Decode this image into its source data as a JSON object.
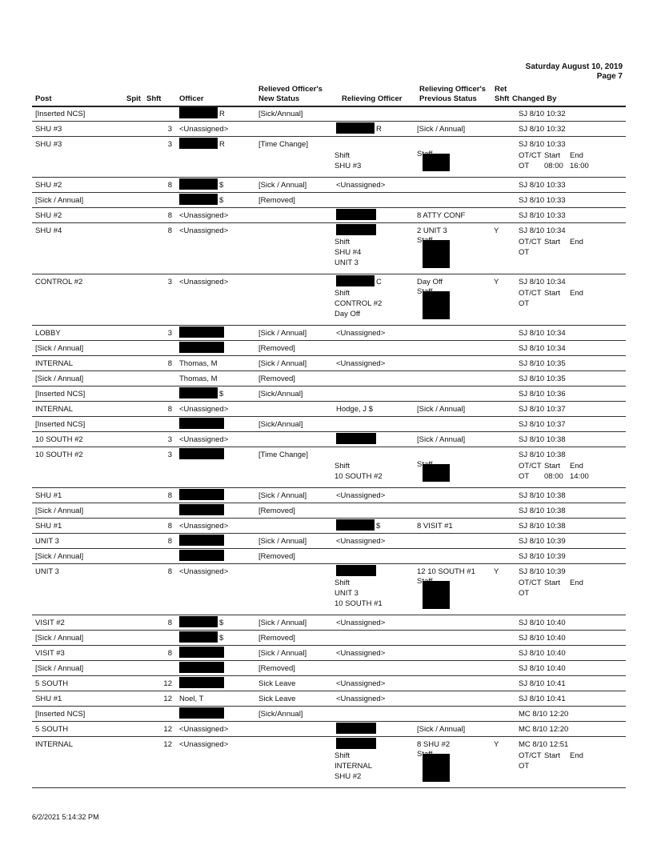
{
  "header": {
    "date": "Saturday August 10, 2019",
    "page": "Page 7"
  },
  "columns": {
    "post": "Post",
    "spit": "Spit",
    "shft": "Shft",
    "officer": "Officer",
    "new_status_1": "Relieved Officer's",
    "new_status_2": "New Status",
    "relieving": "Relieving Officer",
    "prev_status_1": "Relieving Officer's",
    "prev_status_2": "Previous  Status",
    "ret_1": "Ret",
    "ret_2": "Shft",
    "changed_by": "Changed By"
  },
  "rows": [
    {
      "post": "[Inserted NCS]",
      "shft": "",
      "officer": {
        "redacted": true,
        "suffix": "R"
      },
      "new": "[Sick/Annual]",
      "rel": "",
      "prev": "",
      "ret": "",
      "chg": "SJ 8/10 10:32"
    },
    {
      "post": "SHU #3",
      "shft": "3",
      "officer": {
        "text": "<Unassigned>"
      },
      "new": "",
      "rel": {
        "redacted": true,
        "suffix": "R"
      },
      "prev": "[Sick / Annual]",
      "ret": "",
      "chg": "SJ 8/10 10:32"
    },
    {
      "post": "SHU #3",
      "shft": "3",
      "officer": {
        "redacted": true,
        "suffix": "R"
      },
      "new": "[Time Change]",
      "rel": "",
      "prev": "",
      "ret": "",
      "chg": "SJ 8/10 10:33",
      "detail": {
        "shift_label": "Shift",
        "shift_lines": [
          "SHU #3"
        ],
        "staff_label": "Staff",
        "otct_label": "OT/CT",
        "start_label": "Start",
        "end_label": "End",
        "ot": "OT",
        "start": "08:00",
        "end": "16:00"
      }
    },
    {
      "post": "SHU #2",
      "shft": "8",
      "officer": {
        "redacted": true,
        "suffix": "$"
      },
      "new": "[Sick / Annual]",
      "rel": {
        "text": "<Unassigned>"
      },
      "prev": "",
      "ret": "",
      "chg": "SJ 8/10 10:33"
    },
    {
      "post": "[Sick / Annual]",
      "shft": "",
      "officer": {
        "redacted": true,
        "suffix": "$"
      },
      "new": "[Removed]",
      "rel": "",
      "prev": "",
      "ret": "",
      "chg": "SJ 8/10 10:33"
    },
    {
      "post": "SHU #2",
      "shft": "8",
      "officer": {
        "text": "<Unassigned>"
      },
      "new": "",
      "rel": {
        "redacted": true,
        "suffix": ""
      },
      "prev": "8 ATTY CONF",
      "ret": "",
      "chg": "SJ 8/10 10:33"
    },
    {
      "post": "SHU #4",
      "shft": "8",
      "officer": {
        "text": "<Unassigned>"
      },
      "new": "",
      "rel": {
        "redacted": true,
        "suffix": ""
      },
      "prev": "2 UNIT 3",
      "ret": "Y",
      "chg": "SJ 8/10 10:34",
      "detail": {
        "shift_label": "Shift",
        "shift_lines": [
          "SHU #4",
          "UNIT 3"
        ],
        "staff_label": "Staff",
        "otct_label": "OT/CT",
        "start_label": "Start",
        "end_label": "End",
        "ot": "OT",
        "start": "",
        "end": ""
      }
    },
    {
      "post": "CONTROL #2",
      "shft": "3",
      "officer": {
        "text": "<Unassigned>"
      },
      "new": "",
      "rel": {
        "redacted": true,
        "suffix": "C"
      },
      "prev": "Day Off",
      "ret": "Y",
      "chg": "SJ 8/10 10:34",
      "detail": {
        "shift_label": "Shift",
        "shift_lines": [
          "CONTROL #2",
          "Day Off"
        ],
        "staff_label": "Staff",
        "otct_label": "OT/CT",
        "start_label": "Start",
        "end_label": "End",
        "ot": "OT",
        "start": "",
        "end": ""
      }
    },
    {
      "post": "LOBBY",
      "shft": "3",
      "officer": {
        "redacted": true,
        "suffix": ""
      },
      "new": "[Sick / Annual]",
      "rel": {
        "text": "<Unassigned>"
      },
      "prev": "",
      "ret": "",
      "chg": "SJ 8/10 10:34"
    },
    {
      "post": "[Sick / Annual]",
      "shft": "",
      "officer": {
        "redacted": true,
        "suffix": ""
      },
      "new": "[Removed]",
      "rel": "",
      "prev": "",
      "ret": "",
      "chg": "SJ 8/10 10:34"
    },
    {
      "post": "INTERNAL",
      "shft": "8",
      "officer": {
        "text": "Thomas, M"
      },
      "new": "[Sick / Annual]",
      "rel": {
        "text": "<Unassigned>"
      },
      "prev": "",
      "ret": "",
      "chg": "SJ 8/10 10:35"
    },
    {
      "post": "[Sick / Annual]",
      "shft": "",
      "officer": {
        "text": "Thomas, M"
      },
      "new": "[Removed]",
      "rel": "",
      "prev": "",
      "ret": "",
      "chg": "SJ 8/10 10:35"
    },
    {
      "post": "[Inserted NCS]",
      "shft": "",
      "officer": {
        "redacted": true,
        "suffix": "$"
      },
      "new": "[Sick/Annual]",
      "rel": "",
      "prev": "",
      "ret": "",
      "chg": "SJ 8/10 10:36"
    },
    {
      "post": "INTERNAL",
      "shft": "8",
      "officer": {
        "text": "<Unassigned>"
      },
      "new": "",
      "rel": {
        "text": "Hodge, J $"
      },
      "prev": "[Sick / Annual]",
      "ret": "",
      "chg": "SJ 8/10 10:37"
    },
    {
      "post": "[Inserted NCS]",
      "shft": "",
      "officer": {
        "redacted": true,
        "suffix": ""
      },
      "new": "[Sick/Annual]",
      "rel": "",
      "prev": "",
      "ret": "",
      "chg": "SJ 8/10 10:37"
    },
    {
      "post": "10 SOUTH #2",
      "shft": "3",
      "officer": {
        "text": "<Unassigned>"
      },
      "new": "",
      "rel": {
        "redacted": true,
        "suffix": ""
      },
      "prev": "[Sick / Annual]",
      "ret": "",
      "chg": "SJ 8/10 10:38"
    },
    {
      "post": "10 SOUTH #2",
      "shft": "3",
      "officer": {
        "redacted": true,
        "suffix": ""
      },
      "new": "[Time Change]",
      "rel": "",
      "prev": "",
      "ret": "",
      "chg": "SJ 8/10 10:38",
      "detail": {
        "shift_label": "Shift",
        "shift_lines": [
          "10 SOUTH #2"
        ],
        "staff_label": "Staff",
        "otct_label": "OT/CT",
        "start_label": "Start",
        "end_label": "End",
        "ot": "OT",
        "start": "08:00",
        "end": "14:00"
      }
    },
    {
      "post": "SHU #1",
      "shft": "8",
      "officer": {
        "redacted": true,
        "suffix": ""
      },
      "new": "[Sick / Annual]",
      "rel": {
        "text": "<Unassigned>"
      },
      "prev": "",
      "ret": "",
      "chg": "SJ 8/10 10:38"
    },
    {
      "post": "[Sick / Annual]",
      "shft": "",
      "officer": {
        "redacted": true,
        "suffix": ""
      },
      "new": "[Removed]",
      "rel": "",
      "prev": "",
      "ret": "",
      "chg": "SJ 8/10 10:38"
    },
    {
      "post": "SHU #1",
      "shft": "8",
      "officer": {
        "text": "<Unassigned>"
      },
      "new": "",
      "rel": {
        "redacted": true,
        "suffix": "$"
      },
      "prev": "8 VISIT #1",
      "ret": "",
      "chg": "SJ 8/10 10:38"
    },
    {
      "post": "UNIT 3",
      "shft": "8",
      "officer": {
        "redacted": true,
        "suffix": ""
      },
      "new": "[Sick / Annual]",
      "rel": {
        "text": "<Unassigned>"
      },
      "prev": "",
      "ret": "",
      "chg": "SJ 8/10 10:39"
    },
    {
      "post": "[Sick / Annual]",
      "shft": "",
      "officer": {
        "redacted": true,
        "suffix": ""
      },
      "new": "[Removed]",
      "rel": "",
      "prev": "",
      "ret": "",
      "chg": "SJ 8/10 10:39"
    },
    {
      "post": "UNIT 3",
      "shft": "8",
      "officer": {
        "text": "<Unassigned>"
      },
      "new": "",
      "rel": {
        "redacted": true,
        "suffix": ""
      },
      "prev": "12 10 SOUTH #1",
      "ret": "Y",
      "chg": "SJ 8/10 10:39",
      "detail": {
        "shift_label": "Shift",
        "shift_lines": [
          "UNIT 3",
          "10 SOUTH #1"
        ],
        "staff_label": "Staff",
        "otct_label": "OT/CT",
        "start_label": "Start",
        "end_label": "End",
        "ot": "OT",
        "start": "",
        "end": ""
      }
    },
    {
      "post": "VISIT #2",
      "shft": "8",
      "officer": {
        "redacted": true,
        "suffix": "$"
      },
      "new": "[Sick / Annual]",
      "rel": {
        "text": "<Unassigned>"
      },
      "prev": "",
      "ret": "",
      "chg": "SJ 8/10 10:40"
    },
    {
      "post": "[Sick / Annual]",
      "shft": "",
      "officer": {
        "redacted": true,
        "suffix": "$"
      },
      "new": "[Removed]",
      "rel": "",
      "prev": "",
      "ret": "",
      "chg": "SJ 8/10 10:40"
    },
    {
      "post": "VISIT #3",
      "shft": "8",
      "officer": {
        "redacted": true,
        "suffix": ""
      },
      "new": "[Sick / Annual]",
      "rel": {
        "text": "<Unassigned>"
      },
      "prev": "",
      "ret": "",
      "chg": "SJ 8/10 10:40"
    },
    {
      "post": "[Sick / Annual]",
      "shft": "",
      "officer": {
        "redacted": true,
        "suffix": ""
      },
      "new": "[Removed]",
      "rel": "",
      "prev": "",
      "ret": "",
      "chg": "SJ 8/10 10:40"
    },
    {
      "post": "5 SOUTH",
      "shft": "12",
      "officer": {
        "redacted": true,
        "suffix": ""
      },
      "new": "Sick Leave",
      "rel": {
        "text": "<Unassigned>"
      },
      "prev": "",
      "ret": "",
      "chg": "SJ 8/10 10:41"
    },
    {
      "post": "SHU #1",
      "shft": "12",
      "officer": {
        "text": "Noel, T"
      },
      "new": "Sick Leave",
      "rel": {
        "text": "<Unassigned>"
      },
      "prev": "",
      "ret": "",
      "chg": "SJ 8/10 10:41"
    },
    {
      "post": "[Inserted NCS]",
      "shft": "",
      "officer": {
        "redacted": true,
        "suffix": ""
      },
      "new": "[Sick/Annual]",
      "rel": "",
      "prev": "",
      "ret": "",
      "chg": "MC 8/10 12:20"
    },
    {
      "post": "5 SOUTH",
      "shft": "12",
      "officer": {
        "text": "<Unassigned>"
      },
      "new": "",
      "rel": {
        "redacted": true,
        "suffix": ""
      },
      "prev": "[Sick / Annual]",
      "ret": "",
      "chg": "MC 8/10 12:20"
    },
    {
      "post": "INTERNAL",
      "shft": "12",
      "officer": {
        "text": "<Unassigned>"
      },
      "new": "",
      "rel": {
        "redacted": true,
        "suffix": ""
      },
      "prev": "8 SHU #2",
      "ret": "Y",
      "chg": "MC 8/10 12:51",
      "detail": {
        "shift_label": "Shift",
        "shift_lines": [
          "INTERNAL",
          "SHU #2"
        ],
        "staff_label": "Staff",
        "otct_label": "OT/CT",
        "start_label": "Start",
        "end_label": "End",
        "ot": "OT",
        "start": "",
        "end": ""
      }
    }
  ],
  "footer": {
    "printed": "6/2/2021 5:14:32 PM"
  }
}
